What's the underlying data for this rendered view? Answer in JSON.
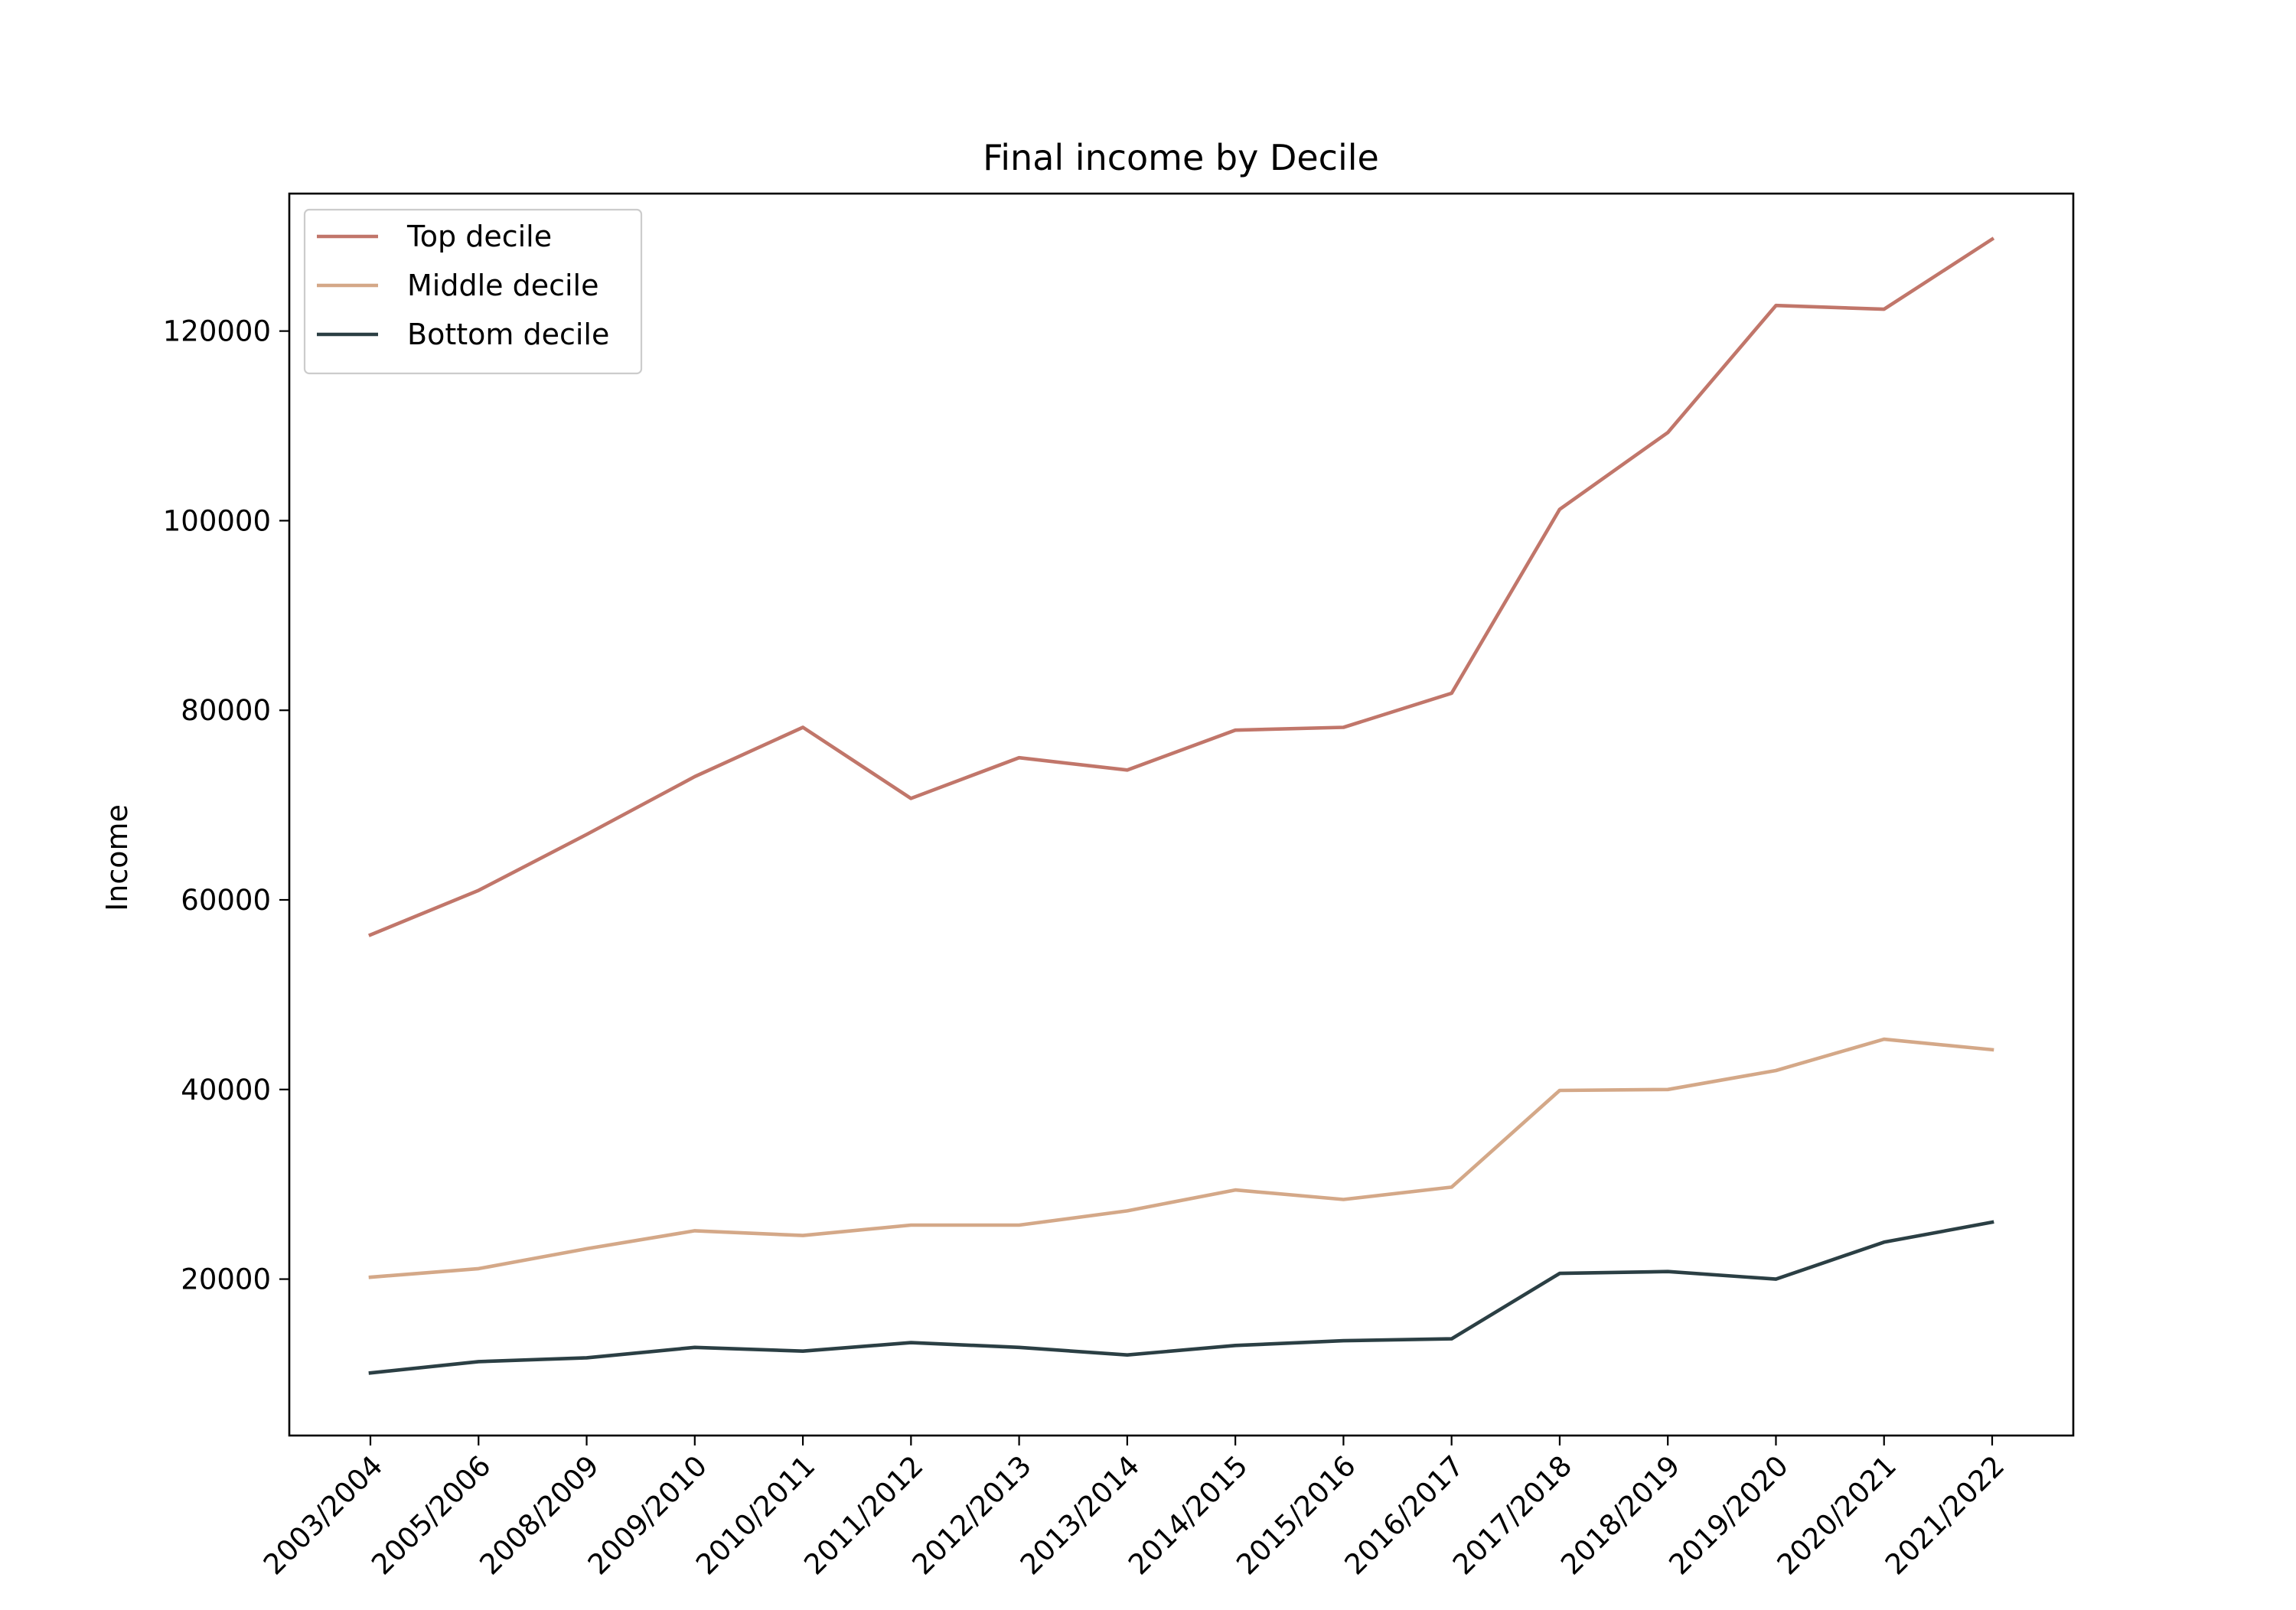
{
  "chart_data": {
    "type": "line",
    "title": "Final income by Decile",
    "xlabel": "",
    "ylabel": "Income",
    "categories": [
      "2003/2004",
      "2005/2006",
      "2008/2009",
      "2009/2010",
      "2010/2011",
      "2011/2012",
      "2012/2013",
      "2013/2014",
      "2014/2015",
      "2015/2016",
      "2016/2017",
      "2017/2018",
      "2018/2019",
      "2019/2020",
      "2020/2021",
      "2021/2022"
    ],
    "ylim": [
      3500,
      134500
    ],
    "yticks": [
      20000,
      40000,
      60000,
      80000,
      100000,
      120000
    ],
    "grid": false,
    "legend_position": "top-left",
    "series": [
      {
        "name": "Top decile",
        "color": "#c1766a",
        "values": [
          56300,
          61000,
          66900,
          73000,
          78200,
          70700,
          75000,
          73700,
          77900,
          78200,
          81800,
          101200,
          109300,
          122700,
          122300,
          129700
        ]
      },
      {
        "name": "Middle decile",
        "color": "#d4a888",
        "values": [
          20200,
          21100,
          23200,
          25100,
          24600,
          25700,
          25700,
          27200,
          29400,
          28400,
          29700,
          39900,
          40000,
          42000,
          45300,
          44200
        ]
      },
      {
        "name": "Bottom decile",
        "color": "#2b3f44",
        "values": [
          10100,
          11300,
          11700,
          12800,
          12400,
          13300,
          12800,
          12000,
          13000,
          13500,
          13700,
          20600,
          20800,
          20000,
          23900,
          26000
        ]
      }
    ]
  }
}
